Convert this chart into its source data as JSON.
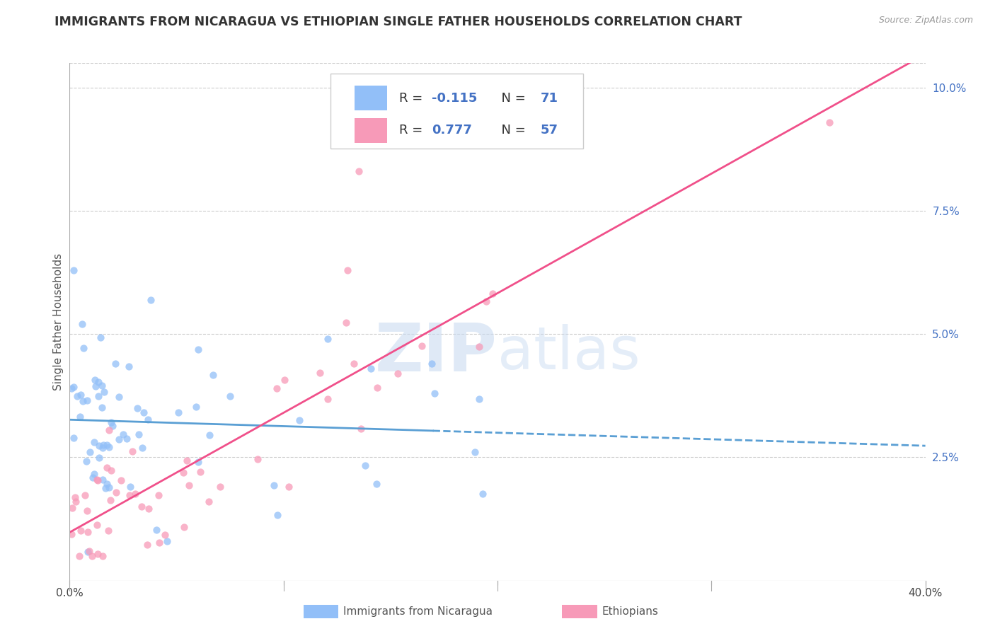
{
  "title": "IMMIGRANTS FROM NICARAGUA VS ETHIOPIAN SINGLE FATHER HOUSEHOLDS CORRELATION CHART",
  "source": "Source: ZipAtlas.com",
  "ylabel": "Single Father Households",
  "legend_label1": "Immigrants from Nicaragua",
  "legend_label2": "Ethiopians",
  "R1": -0.115,
  "N1": 71,
  "R2": 0.777,
  "N2": 57,
  "xlim": [
    0.0,
    0.4
  ],
  "ylim": [
    0.0,
    0.105
  ],
  "color_blue": "#92bff8",
  "color_pink": "#f79ab8",
  "line_blue": "#5a9fd4",
  "line_pink": "#f0508a",
  "scatter_alpha": 0.75,
  "scatter_size": 55,
  "watermark_zip": "ZIP",
  "watermark_atlas": "atlas",
  "title_fontsize": 12.5,
  "source_fontsize": 9,
  "ytick_vals": [
    0.025,
    0.05,
    0.075,
    0.1
  ],
  "ytick_labels": [
    "2.5%",
    "5.0%",
    "7.5%",
    "10.0%"
  ],
  "xtick_vals": [
    0.0,
    0.1,
    0.2,
    0.3,
    0.4
  ],
  "xtick_labels": [
    "0.0%",
    "",
    "",
    "",
    "40.0%"
  ]
}
